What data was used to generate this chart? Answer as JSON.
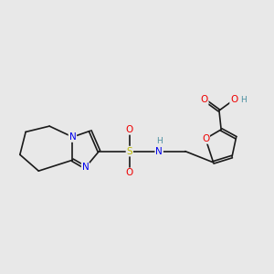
{
  "background_color": "#e8e8e8",
  "bond_color": "#1a1a1a",
  "bond_width": 1.2,
  "atom_colors": {
    "N": "#0000ee",
    "O": "#ee0000",
    "S": "#bbbb00",
    "H": "#4a8fa0",
    "C": "#1a1a1a"
  },
  "font_size": 7.5,
  "font_size_H": 6.5
}
